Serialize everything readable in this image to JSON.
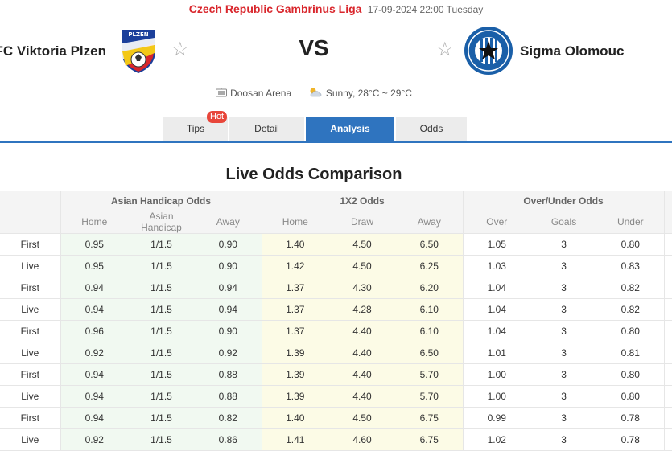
{
  "header": {
    "league": "Czech Republic Gambrinus Liga",
    "date": "17-09-2024 22:00 Tuesday",
    "home_team": "FC Viktoria Plzen",
    "away_team": "Sigma Olomouc",
    "vs": "VS",
    "venue": "Doosan Arena",
    "weather": "Sunny, 28°C ~ 29°C",
    "home_crest_text": "PLZEN",
    "home_crest_text2": "FC VIKTORIA",
    "away_crest_text": "SK SIGMA OLOMOUC",
    "away_crest_text2": "A.S."
  },
  "tabs": {
    "tips": "Tips",
    "hot": "Hot",
    "detail": "Detail",
    "analysis": "Analysis",
    "odds": "Odds"
  },
  "section_title": "Live Odds Comparison",
  "table": {
    "groups": {
      "asian": "Asian Handicap Odds",
      "x12": "1X2 Odds",
      "ou": "Over/Under Odds"
    },
    "columns": {
      "ah_home": "Home",
      "ah_handicap": "Asian Handicap",
      "ah_away": "Away",
      "x_home": "Home",
      "x_draw": "Draw",
      "x_away": "Away",
      "ou_over": "Over",
      "ou_goals": "Goals",
      "ou_under": "Under"
    },
    "rows": [
      {
        "type": "First",
        "ah_home": "0.95",
        "ah_handicap": "1/1.5",
        "ah_away": "0.90",
        "x_home": "1.40",
        "x_draw": "4.50",
        "x_away": "6.50",
        "ou_over": "1.05",
        "ou_goals": "3",
        "ou_under": "0.80"
      },
      {
        "type": "Live",
        "ah_home": "0.95",
        "ah_handicap": "1/1.5",
        "ah_away": "0.90",
        "x_home": "1.42",
        "x_draw": "4.50",
        "x_away": "6.25",
        "ou_over": "1.03",
        "ou_goals": "3",
        "ou_under": "0.83"
      },
      {
        "type": "First",
        "ah_home": "0.94",
        "ah_handicap": "1/1.5",
        "ah_away": "0.94",
        "x_home": "1.37",
        "x_draw": "4.30",
        "x_away": "6.20",
        "ou_over": "1.04",
        "ou_goals": "3",
        "ou_under": "0.82"
      },
      {
        "type": "Live",
        "ah_home": "0.94",
        "ah_handicap": "1/1.5",
        "ah_away": "0.94",
        "x_home": "1.37",
        "x_draw": "4.28",
        "x_away": "6.10",
        "ou_over": "1.04",
        "ou_goals": "3",
        "ou_under": "0.82"
      },
      {
        "type": "First",
        "ah_home": "0.96",
        "ah_handicap": "1/1.5",
        "ah_away": "0.90",
        "x_home": "1.37",
        "x_draw": "4.40",
        "x_away": "6.10",
        "ou_over": "1.04",
        "ou_goals": "3",
        "ou_under": "0.80"
      },
      {
        "type": "Live",
        "ah_home": "0.92",
        "ah_handicap": "1/1.5",
        "ah_away": "0.92",
        "x_home": "1.39",
        "x_draw": "4.40",
        "x_away": "6.50",
        "ou_over": "1.01",
        "ou_goals": "3",
        "ou_under": "0.81"
      },
      {
        "type": "First",
        "ah_home": "0.94",
        "ah_handicap": "1/1.5",
        "ah_away": "0.88",
        "x_home": "1.39",
        "x_draw": "4.40",
        "x_away": "5.70",
        "ou_over": "1.00",
        "ou_goals": "3",
        "ou_under": "0.80"
      },
      {
        "type": "Live",
        "ah_home": "0.94",
        "ah_handicap": "1/1.5",
        "ah_away": "0.88",
        "x_home": "1.39",
        "x_draw": "4.40",
        "x_away": "5.70",
        "ou_over": "1.00",
        "ou_goals": "3",
        "ou_under": "0.80"
      },
      {
        "type": "First",
        "ah_home": "0.94",
        "ah_handicap": "1/1.5",
        "ah_away": "0.82",
        "x_home": "1.40",
        "x_draw": "4.50",
        "x_away": "6.75",
        "ou_over": "0.99",
        "ou_goals": "3",
        "ou_under": "0.78"
      },
      {
        "type": "Live",
        "ah_home": "0.92",
        "ah_handicap": "1/1.5",
        "ah_away": "0.86",
        "x_home": "1.41",
        "x_draw": "4.60",
        "x_away": "6.75",
        "ou_over": "1.02",
        "ou_goals": "3",
        "ou_under": "0.78"
      }
    ]
  },
  "colors": {
    "league_red": "#d9262c",
    "tab_active": "#2f74bf",
    "ah_bg": "#f1f9f1",
    "x12_bg": "#fcfbe6",
    "sigma_blue": "#1a5fa8",
    "plzen_red": "#d8262b",
    "plzen_blue": "#1b3f9b",
    "plzen_yellow": "#f3c817"
  },
  "icons": {
    "star": "star-icon",
    "venue": "stadium-icon",
    "weather": "sun-cloud-icon"
  }
}
